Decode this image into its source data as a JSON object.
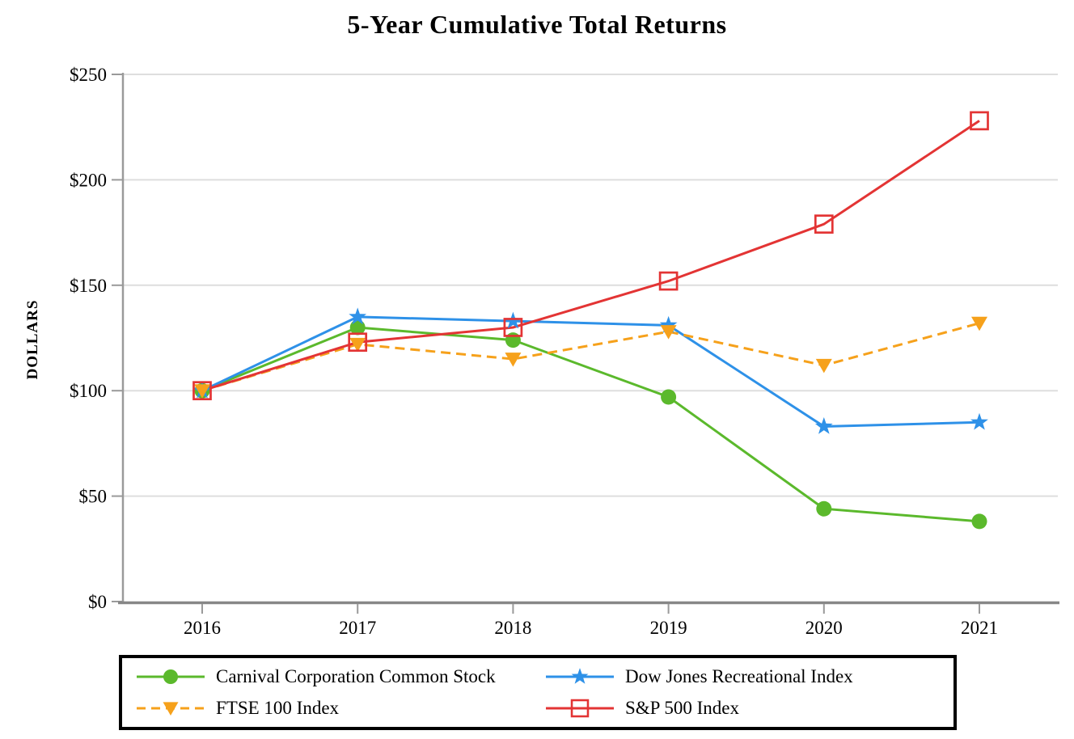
{
  "title": "5-Year Cumulative Total Returns",
  "chart_data": {
    "type": "line",
    "title": "5-Year Cumulative Total Returns",
    "xlabel": "",
    "ylabel": "DOLLARS",
    "x": [
      2016,
      2017,
      2018,
      2019,
      2020,
      2021
    ],
    "ylim": [
      0,
      250
    ],
    "ytick_interval": 50,
    "ytick_labels": [
      "$0",
      "$50",
      "$100",
      "$150",
      "$200",
      "$250"
    ],
    "grid": "horizontal",
    "legend_position": "bottom-box",
    "series": [
      {
        "name": "Carnival Corporation Common Stock",
        "color": "#5bb92c",
        "marker": "circle",
        "line_style": "solid",
        "values": [
          100,
          130,
          124,
          97,
          44,
          38
        ]
      },
      {
        "name": "Dow Jones Recreational Index",
        "color": "#2e91e8",
        "marker": "star",
        "line_style": "solid",
        "values": [
          100,
          135,
          133,
          131,
          83,
          85
        ]
      },
      {
        "name": "FTSE 100 Index",
        "color": "#f6a11b",
        "marker": "triangle-down",
        "line_style": "dashed",
        "values": [
          100,
          122,
          115,
          128,
          112,
          132
        ]
      },
      {
        "name": "S&P 500 Index",
        "color": "#e33434",
        "marker": "square-open",
        "line_style": "solid",
        "values": [
          100,
          123,
          130,
          152,
          179,
          228
        ]
      }
    ]
  }
}
